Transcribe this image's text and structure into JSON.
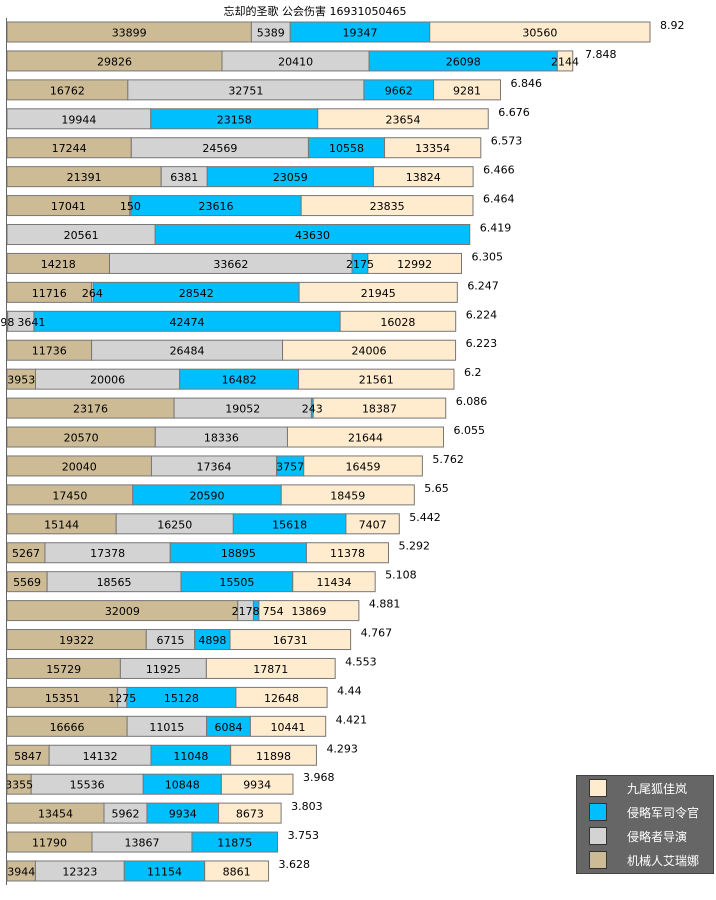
{
  "chart_data": {
    "type": "bar",
    "orientation": "horizontal",
    "stacked": true,
    "title": "忘却的圣歌  公会伤害 16931050465",
    "legend_position": "bottom-right",
    "grid": false,
    "series": [
      {
        "name": "机械人艾瑞娜",
        "color": "#CDBB96",
        "values": [
          33899,
          29826,
          16762,
          0,
          17244,
          21391,
          17041,
          0,
          14218,
          11716,
          98,
          11736,
          3953,
          23176,
          20570,
          20040,
          17450,
          15144,
          5267,
          5569,
          32009,
          19322,
          15729,
          15351,
          16666,
          5847,
          3355,
          13454,
          11790,
          3944
        ]
      },
      {
        "name": "侵略者导演",
        "color": "#D3D3D3",
        "values": [
          5389,
          20410,
          32751,
          19944,
          24569,
          6381,
          150,
          20561,
          33662,
          264,
          3641,
          26484,
          20006,
          19052,
          18336,
          17364,
          0,
          16250,
          17378,
          18565,
          2178,
          6715,
          11925,
          1275,
          11015,
          14132,
          15536,
          5962,
          13867,
          12323
        ]
      },
      {
        "name": "侵略军司令官",
        "color": "#00BFFF",
        "values": [
          19347,
          26098,
          9662,
          23158,
          10558,
          23059,
          23616,
          43630,
          2175,
          28542,
          42474,
          0,
          16482,
          243,
          0,
          3757,
          20590,
          15618,
          18895,
          15505,
          754,
          4898,
          0,
          15128,
          6084,
          11048,
          10848,
          9934,
          11875,
          11154
        ]
      },
      {
        "name": "九尾狐佳岚",
        "color": "#FFEBCD",
        "values": [
          30560,
          2144,
          9281,
          23654,
          13354,
          13824,
          23835,
          0,
          12992,
          21945,
          16028,
          24006,
          21561,
          18387,
          21644,
          16459,
          18459,
          7407,
          11378,
          11434,
          13869,
          16731,
          17871,
          12648,
          10441,
          11898,
          9934,
          8673,
          0,
          8861
        ]
      }
    ],
    "totals_label": [
      "8.92",
      "7.848",
      "6.846",
      "6.676",
      "6.573",
      "6.466",
      "6.464",
      "6.419",
      "6.305",
      "6.247",
      "6.224",
      "6.223",
      "6.2",
      "6.086",
      "6.055",
      "5.762",
      "5.65",
      "5.442",
      "5.292",
      "5.108",
      "4.881",
      "4.767",
      "4.553",
      "4.44",
      "4.421",
      "4.293",
      "3.968",
      "3.803",
      "3.753",
      "3.628"
    ]
  }
}
